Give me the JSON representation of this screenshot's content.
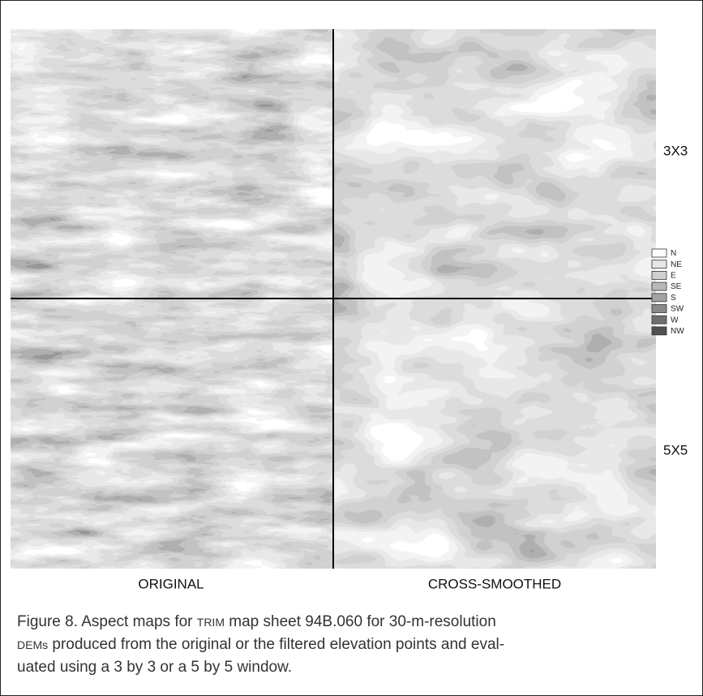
{
  "figure": {
    "row_labels": [
      "3X3",
      "5X5"
    ],
    "column_labels": [
      "ORIGINAL",
      "CROSS-SMOOTHED"
    ],
    "legend": [
      {
        "label": "N",
        "color": "#ffffff"
      },
      {
        "label": "NE",
        "color": "#e6e6e6"
      },
      {
        "label": "E",
        "color": "#cfcfcf"
      },
      {
        "label": "SE",
        "color": "#b8b8b8"
      },
      {
        "label": "S",
        "color": "#a2a2a2"
      },
      {
        "label": "SW",
        "color": "#8a8a8a"
      },
      {
        "label": "W",
        "color": "#6e6e6e"
      },
      {
        "label": "NW",
        "color": "#505050"
      }
    ],
    "caption": [
      [
        {
          "text": "Figure 8. Aspect maps for "
        },
        {
          "text": "TRIM",
          "small_caps": true
        },
        {
          "text": " map sheet 94B.060 for 30-m-resolution"
        }
      ],
      [
        {
          "text": "DEMs",
          "small_caps": true
        },
        {
          "text": " produced from the original or the filtered elevation points and eval-"
        }
      ],
      [
        {
          "text": "uated using a 3 by 3 or a 5 by 5 window."
        }
      ]
    ]
  }
}
